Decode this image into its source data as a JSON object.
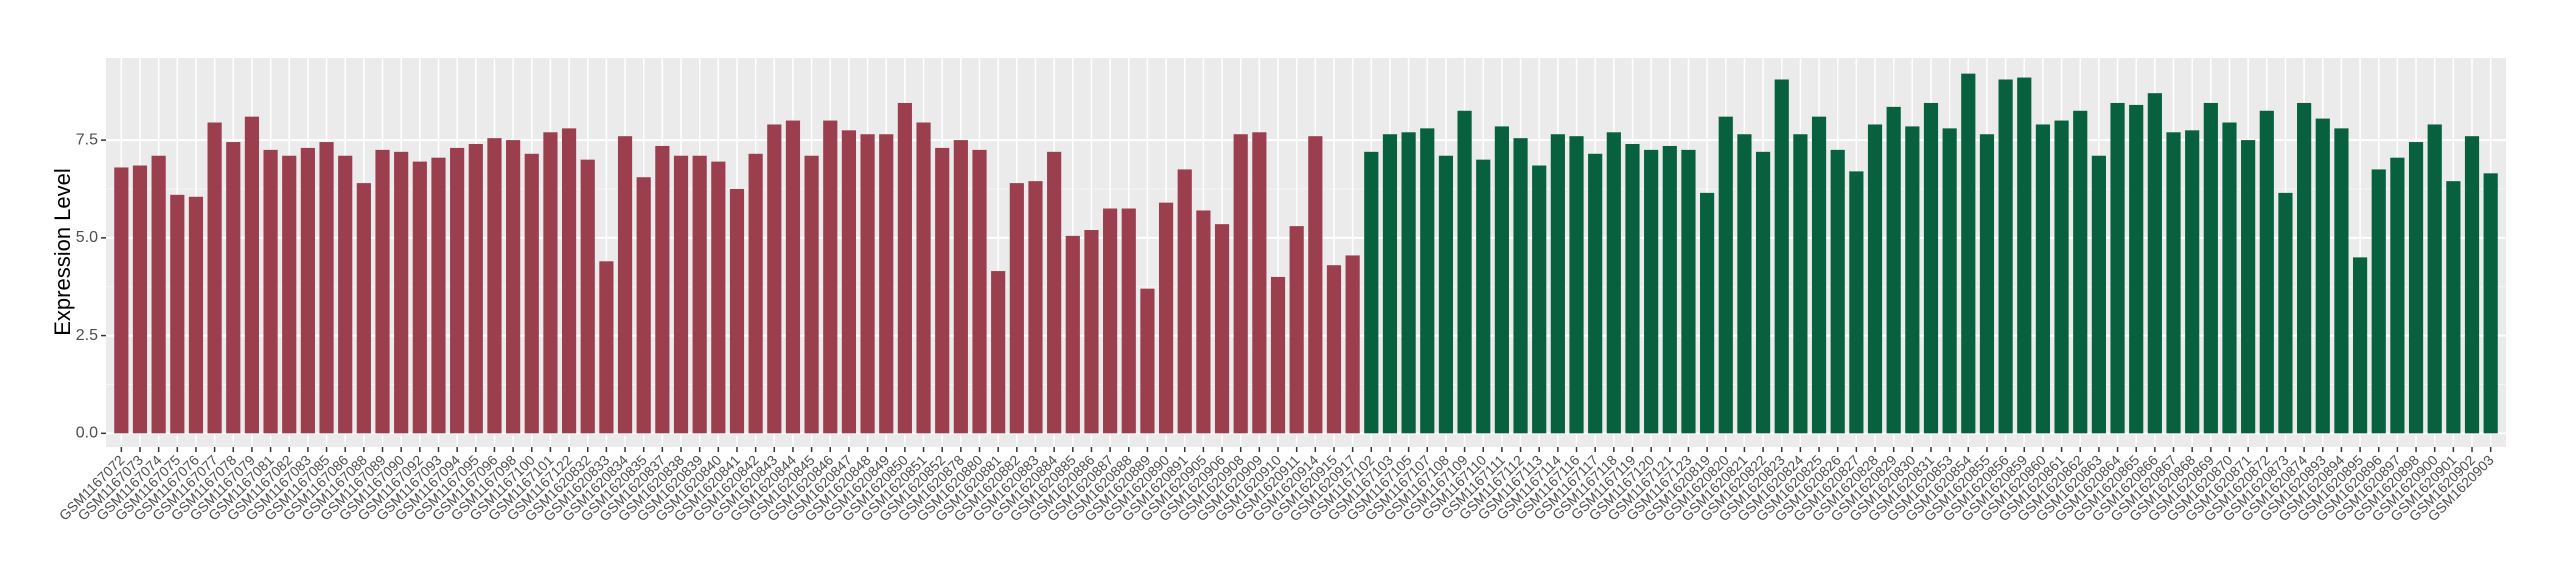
{
  "chart_data": {
    "type": "bar",
    "y_label": "Expression Level",
    "ylim": [
      -0.35,
      9.6
    ],
    "yticks": [
      {
        "value": 0,
        "label": "0.0"
      },
      2.5,
      {
        "value": 5,
        "label": "5.0"
      },
      7.5
    ],
    "grid": true,
    "categories": [
      "GSM1167072",
      "GSM1167073",
      "GSM1167074",
      "GSM1167075",
      "GSM1167076",
      "GSM1167077",
      "GSM1167078",
      "GSM1167079",
      "GSM1167081",
      "GSM1167082",
      "GSM1167083",
      "GSM1167085",
      "GSM1167086",
      "GSM1167088",
      "GSM1167089",
      "GSM1167090",
      "GSM1167092",
      "GSM1167093",
      "GSM1167094",
      "GSM1167095",
      "GSM1167096",
      "GSM1167098",
      "GSM1167100",
      "GSM1167101",
      "GSM1167122",
      "GSM1620832",
      "GSM1620833",
      "GSM1620834",
      "GSM1620835",
      "GSM1620837",
      "GSM1620838",
      "GSM1620839",
      "GSM1620840",
      "GSM1620841",
      "GSM1620842",
      "GSM1620843",
      "GSM1620844",
      "GSM1620845",
      "GSM1620846",
      "GSM1620847",
      "GSM1620848",
      "GSM1620849",
      "GSM1620850",
      "GSM1620851",
      "GSM1620852",
      "GSM1620878",
      "GSM1620880",
      "GSM1620881",
      "GSM1620882",
      "GSM1620883",
      "GSM1620884",
      "GSM1620885",
      "GSM1620886",
      "GSM1620887",
      "GSM1620888",
      "GSM1620889",
      "GSM1620890",
      "GSM1620891",
      "GSM1620905",
      "GSM1620906",
      "GSM1620908",
      "GSM1620909",
      "GSM1620910",
      "GSM1620911",
      "GSM1620914",
      "GSM1620915",
      "GSM1620917",
      "GSM1167102",
      "GSM1167103",
      "GSM1167105",
      "GSM1167107",
      "GSM1167108",
      "GSM1167109",
      "GSM1167110",
      "GSM1167111",
      "GSM1167112",
      "GSM1167113",
      "GSM1167114",
      "GSM1167116",
      "GSM1167117",
      "GSM1167118",
      "GSM1167119",
      "GSM1167120",
      "GSM1167121",
      "GSM1167123",
      "GSM1620819",
      "GSM1620820",
      "GSM1620821",
      "GSM1620822",
      "GSM1620823",
      "GSM1620824",
      "GSM1620825",
      "GSM1620826",
      "GSM1620827",
      "GSM1620828",
      "GSM1620829",
      "GSM1620830",
      "GSM1620831",
      "GSM1620853",
      "GSM1620854",
      "GSM1620855",
      "GSM1620856",
      "GSM1620859",
      "GSM1620860",
      "GSM1620861",
      "GSM1620862",
      "GSM1620863",
      "GSM1620864",
      "GSM1620865",
      "GSM1620866",
      "GSM1620867",
      "GSM1620868",
      "GSM1620869",
      "GSM1620870",
      "GSM1620871",
      "GSM1620872",
      "GSM1620873",
      "GSM1620874",
      "GSM1620893",
      "GSM1620894",
      "GSM1620895",
      "GSM1620896",
      "GSM1620897",
      "GSM1620898",
      "GSM1620900",
      "GSM1620901",
      "GSM1620902",
      "GSM1620903"
    ],
    "values": [
      6.8,
      6.85,
      7.1,
      6.1,
      6.05,
      7.95,
      7.45,
      8.1,
      7.25,
      7.1,
      7.3,
      7.45,
      7.1,
      6.4,
      7.25,
      7.2,
      6.95,
      7.05,
      7.3,
      7.4,
      7.55,
      7.5,
      7.15,
      7.7,
      7.8,
      7.0,
      4.4,
      7.6,
      6.55,
      7.35,
      7.1,
      7.1,
      6.95,
      6.25,
      7.15,
      7.9,
      8.0,
      7.1,
      8.0,
      7.75,
      7.65,
      7.65,
      8.45,
      7.95,
      7.3,
      7.5,
      7.25,
      4.15,
      6.4,
      6.45,
      7.2,
      5.05,
      5.2,
      5.75,
      5.75,
      3.7,
      5.9,
      6.75,
      5.7,
      5.35,
      7.65,
      7.7,
      4.0,
      5.3,
      7.6,
      4.3,
      4.55,
      7.2,
      7.65,
      7.7,
      7.8,
      7.1,
      8.25,
      7.0,
      7.85,
      7.55,
      6.85,
      7.65,
      7.6,
      7.15,
      7.7,
      7.4,
      7.25,
      7.35,
      7.25,
      6.15,
      8.1,
      7.65,
      7.2,
      9.05,
      7.65,
      8.1,
      7.25,
      6.7,
      7.9,
      8.35,
      7.85,
      8.45,
      7.8,
      9.2,
      7.65,
      9.05,
      9.1,
      7.9,
      8.0,
      8.25,
      7.1,
      8.45,
      8.4,
      8.7,
      7.7,
      7.75,
      8.45,
      7.95,
      7.5,
      8.25,
      6.15,
      8.45,
      8.05,
      7.8,
      4.5,
      6.75,
      7.05,
      7.45,
      7.9,
      6.45,
      7.6,
      6.65
    ],
    "bar_colors": [
      "#9b3f4f",
      "#9b3f4f",
      "#9b3f4f",
      "#9b3f4f",
      "#9b3f4f",
      "#9b3f4f",
      "#9b3f4f",
      "#9b3f4f",
      "#9b3f4f",
      "#9b3f4f",
      "#9b3f4f",
      "#9b3f4f",
      "#9b3f4f",
      "#9b3f4f",
      "#9b3f4f",
      "#9b3f4f",
      "#9b3f4f",
      "#9b3f4f",
      "#9b3f4f",
      "#9b3f4f",
      "#9b3f4f",
      "#9b3f4f",
      "#9b3f4f",
      "#9b3f4f",
      "#9b3f4f",
      "#9b3f4f",
      "#9b3f4f",
      "#9b3f4f",
      "#9b3f4f",
      "#9b3f4f",
      "#9b3f4f",
      "#9b3f4f",
      "#9b3f4f",
      "#9b3f4f",
      "#9b3f4f",
      "#9b3f4f",
      "#9b3f4f",
      "#9b3f4f",
      "#9b3f4f",
      "#9b3f4f",
      "#9b3f4f",
      "#9b3f4f",
      "#9b3f4f",
      "#9b3f4f",
      "#9b3f4f",
      "#9b3f4f",
      "#9b3f4f",
      "#9b3f4f",
      "#9b3f4f",
      "#9b3f4f",
      "#9b3f4f",
      "#9b3f4f",
      "#9b3f4f",
      "#9b3f4f",
      "#9b3f4f",
      "#9b3f4f",
      "#9b3f4f",
      "#9b3f4f",
      "#9b3f4f",
      "#9b3f4f",
      "#9b3f4f",
      "#9b3f4f",
      "#9b3f4f",
      "#9b3f4f",
      "#9b3f4f",
      "#9b3f4f",
      "#9b3f4f",
      "#07613e",
      "#07613e",
      "#07613e",
      "#07613e",
      "#07613e",
      "#07613e",
      "#07613e",
      "#07613e",
      "#07613e",
      "#07613e",
      "#07613e",
      "#07613e",
      "#07613e",
      "#07613e",
      "#07613e",
      "#07613e",
      "#07613e",
      "#07613e",
      "#07613e",
      "#07613e",
      "#07613e",
      "#07613e",
      "#07613e",
      "#07613e",
      "#07613e",
      "#07613e",
      "#07613e",
      "#07613e",
      "#07613e",
      "#07613e",
      "#07613e",
      "#07613e",
      "#07613e",
      "#07613e",
      "#07613e",
      "#07613e",
      "#07613e",
      "#07613e",
      "#07613e",
      "#07613e",
      "#07613e",
      "#07613e",
      "#07613e",
      "#07613e",
      "#07613e",
      "#07613e",
      "#07613e",
      "#07613e",
      "#07613e",
      "#07613e",
      "#07613e",
      "#07613e",
      "#07613e",
      "#07613e",
      "#07613e",
      "#07613e",
      "#07613e",
      "#07613e",
      "#07613e",
      "#07613e",
      "#07613e"
    ]
  }
}
